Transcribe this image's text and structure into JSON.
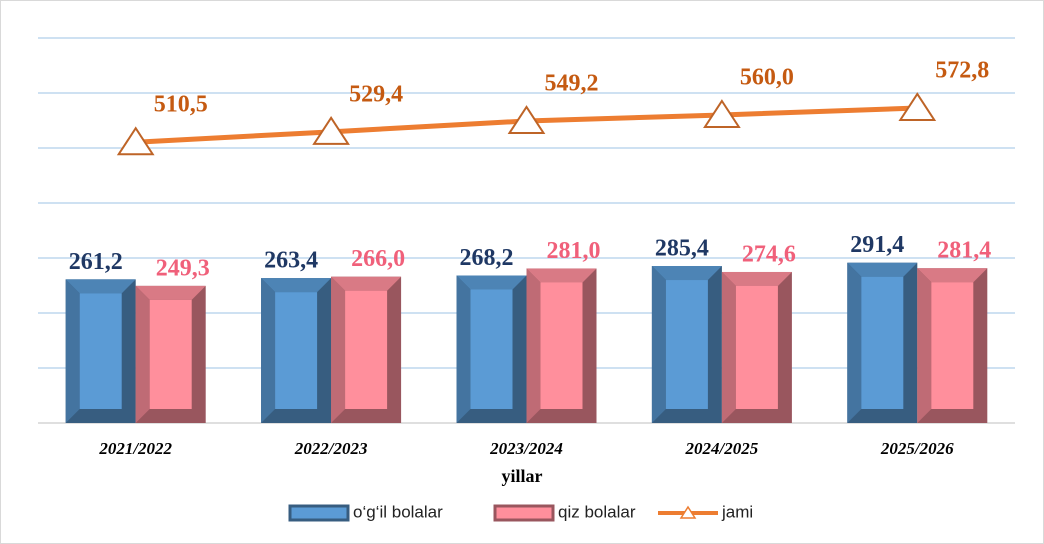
{
  "chart_data": {
    "type": "bar",
    "categories": [
      "2021/2022",
      "2022/2023",
      "2023/2024",
      "2024/2025",
      "2025/2026"
    ],
    "x_label": "yillar",
    "ylim": [
      0,
      700
    ],
    "yticks": [
      0,
      100,
      200,
      300,
      400,
      500,
      600,
      700
    ],
    "grid": true,
    "legend": "bottom",
    "series": [
      {
        "name": "o‘g‘il bolalar",
        "color": "#5b9bd5",
        "values": [
          261.2,
          263.4,
          268.2,
          285.4,
          291.4
        ],
        "value_labels": [
          "261,2",
          "263,4",
          "268,2",
          "285,4",
          "291,4"
        ],
        "label_color": "#1f3864"
      },
      {
        "name": "qiz bolalar",
        "color": "#ff8f9c",
        "values": [
          249.3,
          266.0,
          281.0,
          274.6,
          281.4
        ],
        "value_labels": [
          "249,3",
          "266,0",
          "281,0",
          "274,6",
          "281,4"
        ],
        "label_color": "#f0607a"
      },
      {
        "name": "jami",
        "type": "line",
        "color": "#ed7d31",
        "values": [
          510.5,
          529.4,
          549.2,
          560.0,
          572.8
        ],
        "value_labels": [
          "510,5",
          "529,4",
          "549,2",
          "560,0",
          "572,8"
        ],
        "label_color": "#c55a11"
      }
    ]
  }
}
